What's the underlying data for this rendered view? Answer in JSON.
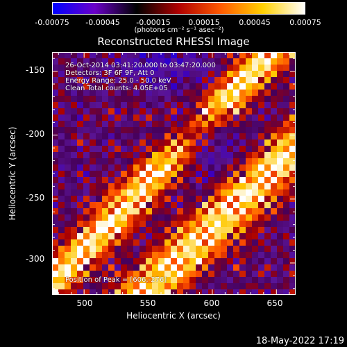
{
  "title": "Reconstructed RHESSI Image",
  "colorbar": {
    "ticks": [
      "-0.00075",
      "-0.00045",
      "-0.00015",
      "0.00015",
      "0.00045",
      "0.00075"
    ],
    "units": "(photons cm⁻² s⁻¹ asec⁻²)",
    "colors": [
      "#0000ff",
      "#6a00c8",
      "#000000",
      "#b00000",
      "#ff5a00",
      "#ffd000",
      "#ffffff"
    ]
  },
  "annotations": {
    "time_range": "26-Oct-2014 03:41:20.000 to 03:47:20.000",
    "detectors": "Detectors: 3F 6F 9F, Att 0",
    "energy_range": "Energy Range: 25.0 - 50.0 keV",
    "clean": "Clean    Total counts: 4.05E+05",
    "peak": "Position of Peak = [606,-276]"
  },
  "axes": {
    "xlabel": "Heliocentric X (arcsec)",
    "ylabel": "Heliocentric Y (arcsec)",
    "xticks": [
      "500",
      "550",
      "600",
      "650"
    ],
    "yticks": [
      "-150",
      "-200",
      "-250",
      "-300"
    ],
    "xlim": [
      475,
      665
    ],
    "ylim": [
      -325,
      -135
    ]
  },
  "datestamp": "18-May-2022 17:19"
}
